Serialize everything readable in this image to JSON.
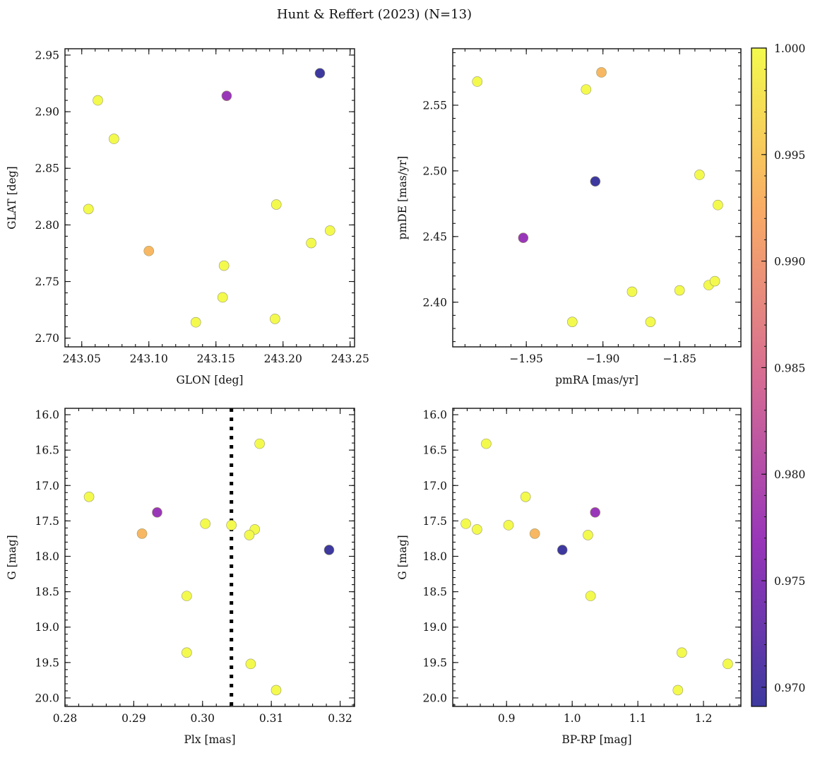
{
  "title": "Hunt & Reffert (2023) (N=13)",
  "colormap": {
    "name": "plasma",
    "alpha": 0.8,
    "range": [
      0.9691,
      1.0
    ],
    "ticks": [
      1.0,
      0.995,
      0.99,
      0.985,
      0.98,
      0.975,
      0.97
    ],
    "tick_labels": [
      "1.000",
      "0.995",
      "0.990",
      "0.985",
      "0.980",
      "0.975",
      "0.970"
    ],
    "stops": [
      "#0d0887",
      "#7e03a8",
      "#cc4778",
      "#f89540",
      "#f0f921"
    ]
  },
  "chart_data": [
    {
      "type": "scatter",
      "xlabel": "GLON [deg]",
      "ylabel": "GLAT [deg]",
      "xlim": [
        243.0375,
        243.2533
      ],
      "ylim": [
        2.6923,
        2.9556
      ],
      "xticks": [
        243.05,
        243.1,
        243.15,
        243.2,
        243.25
      ],
      "xtick_labels": [
        "243.05",
        "243.10",
        "243.15",
        "243.20",
        "243.25"
      ],
      "xminor": 0.01,
      "yticks": [
        2.7,
        2.75,
        2.8,
        2.85,
        2.9,
        2.95
      ],
      "ytick_labels": [
        "2.70",
        "2.75",
        "2.80",
        "2.85",
        "2.90",
        "2.95"
      ],
      "yminor": 0.01,
      "y_inverted": false,
      "points": [
        {
          "x": 243.2275,
          "y": 2.934,
          "p": 0.9691
        },
        {
          "x": 243.158,
          "y": 2.914,
          "p": 0.977
        },
        {
          "x": 243.062,
          "y": 2.91,
          "p": 1.0
        },
        {
          "x": 243.074,
          "y": 2.876,
          "p": 1.0
        },
        {
          "x": 243.055,
          "y": 2.814,
          "p": 1.0
        },
        {
          "x": 243.1,
          "y": 2.777,
          "p": 0.9935
        },
        {
          "x": 243.195,
          "y": 2.818,
          "p": 1.0
        },
        {
          "x": 243.221,
          "y": 2.784,
          "p": 1.0
        },
        {
          "x": 243.235,
          "y": 2.795,
          "p": 1.0
        },
        {
          "x": 243.156,
          "y": 2.764,
          "p": 1.0
        },
        {
          "x": 243.155,
          "y": 2.736,
          "p": 1.0
        },
        {
          "x": 243.135,
          "y": 2.714,
          "p": 1.0
        },
        {
          "x": 243.194,
          "y": 2.717,
          "p": 1.0
        }
      ]
    },
    {
      "type": "scatter",
      "xlabel": "pmRA [mas/yr]",
      "ylabel": "pmDE [mas/yr]",
      "xlim": [
        -1.998,
        -1.81
      ],
      "ylim": [
        2.366,
        2.593
      ],
      "xticks": [
        -1.95,
        -1.9,
        -1.85
      ],
      "xtick_labels": [
        "−1.95",
        "−1.90",
        "−1.85"
      ],
      "xminor": 0.01,
      "yticks": [
        2.4,
        2.45,
        2.5,
        2.55
      ],
      "ytick_labels": [
        "2.40",
        "2.45",
        "2.50",
        "2.55"
      ],
      "yminor": 0.01,
      "y_inverted": false,
      "points": [
        {
          "x": -1.982,
          "y": 2.568,
          "p": 1.0
        },
        {
          "x": -1.911,
          "y": 2.562,
          "p": 1.0
        },
        {
          "x": -1.901,
          "y": 2.575,
          "p": 0.9935
        },
        {
          "x": -1.905,
          "y": 2.492,
          "p": 0.9691
        },
        {
          "x": -1.952,
          "y": 2.449,
          "p": 0.977
        },
        {
          "x": -1.837,
          "y": 2.497,
          "p": 1.0
        },
        {
          "x": -1.825,
          "y": 2.474,
          "p": 1.0
        },
        {
          "x": -1.881,
          "y": 2.408,
          "p": 1.0
        },
        {
          "x": -1.85,
          "y": 2.409,
          "p": 1.0
        },
        {
          "x": -1.831,
          "y": 2.413,
          "p": 1.0
        },
        {
          "x": -1.827,
          "y": 2.416,
          "p": 1.0
        },
        {
          "x": -1.92,
          "y": 2.385,
          "p": 1.0
        },
        {
          "x": -1.869,
          "y": 2.385,
          "p": 1.0
        }
      ]
    },
    {
      "type": "scatter",
      "xlabel": "Plx [mas]",
      "ylabel": "G [mag]",
      "xlim": [
        0.28,
        0.3221
      ],
      "ylim": [
        20.12,
        15.91
      ],
      "xticks": [
        0.28,
        0.29,
        0.3,
        0.31,
        0.32
      ],
      "xtick_labels": [
        "0.28",
        "0.29",
        "0.30",
        "0.31",
        "0.32"
      ],
      "xminor": 0.002,
      "yticks": [
        16.0,
        16.5,
        17.0,
        17.5,
        18.0,
        18.5,
        19.0,
        19.5,
        20.0
      ],
      "ytick_labels": [
        "16.0",
        "16.5",
        "17.0",
        "17.5",
        "18.0",
        "18.5",
        "19.0",
        "19.5",
        "20.0"
      ],
      "yminor": 0.1,
      "y_inverted": true,
      "vline": {
        "x": 0.3042,
        "style": "dotted",
        "color": "#000000"
      },
      "points": [
        {
          "x": 0.3083,
          "y": 16.41,
          "p": 1.0
        },
        {
          "x": 0.2835,
          "y": 17.16,
          "p": 1.0
        },
        {
          "x": 0.2934,
          "y": 17.38,
          "p": 0.977
        },
        {
          "x": 0.3004,
          "y": 17.54,
          "p": 1.0
        },
        {
          "x": 0.3042,
          "y": 17.56,
          "p": 1.0
        },
        {
          "x": 0.3076,
          "y": 17.62,
          "p": 1.0
        },
        {
          "x": 0.3068,
          "y": 17.7,
          "p": 1.0
        },
        {
          "x": 0.2912,
          "y": 17.68,
          "p": 0.9935
        },
        {
          "x": 0.3184,
          "y": 17.91,
          "p": 0.9691
        },
        {
          "x": 0.2977,
          "y": 18.56,
          "p": 1.0
        },
        {
          "x": 0.2977,
          "y": 19.36,
          "p": 1.0
        },
        {
          "x": 0.307,
          "y": 19.52,
          "p": 1.0
        },
        {
          "x": 0.3107,
          "y": 19.89,
          "p": 1.0
        }
      ]
    },
    {
      "type": "scatter",
      "xlabel": "BP-RP [mag]",
      "ylabel": "G [mag]",
      "xlim": [
        0.818,
        1.257
      ],
      "ylim": [
        20.12,
        15.91
      ],
      "xticks": [
        0.9,
        1.0,
        1.1,
        1.2
      ],
      "xtick_labels": [
        "0.9",
        "1.0",
        "1.1",
        "1.2"
      ],
      "xminor": 0.02,
      "yticks": [
        16.0,
        16.5,
        17.0,
        17.5,
        18.0,
        18.5,
        19.0,
        19.5,
        20.0
      ],
      "ytick_labels": [
        "16.0",
        "16.5",
        "17.0",
        "17.5",
        "18.0",
        "18.5",
        "19.0",
        "19.5",
        "20.0"
      ],
      "yminor": 0.1,
      "y_inverted": true,
      "points": [
        {
          "x": 0.869,
          "y": 16.41,
          "p": 1.0
        },
        {
          "x": 0.929,
          "y": 17.16,
          "p": 1.0
        },
        {
          "x": 1.035,
          "y": 17.38,
          "p": 0.977
        },
        {
          "x": 0.838,
          "y": 17.54,
          "p": 1.0
        },
        {
          "x": 0.903,
          "y": 17.56,
          "p": 1.0
        },
        {
          "x": 0.855,
          "y": 17.62,
          "p": 1.0
        },
        {
          "x": 1.024,
          "y": 17.7,
          "p": 1.0
        },
        {
          "x": 0.943,
          "y": 17.68,
          "p": 0.9935
        },
        {
          "x": 0.985,
          "y": 17.91,
          "p": 0.9691
        },
        {
          "x": 1.028,
          "y": 18.56,
          "p": 1.0
        },
        {
          "x": 1.167,
          "y": 19.36,
          "p": 1.0
        },
        {
          "x": 1.237,
          "y": 19.52,
          "p": 1.0
        },
        {
          "x": 1.161,
          "y": 19.89,
          "p": 1.0
        }
      ]
    }
  ]
}
